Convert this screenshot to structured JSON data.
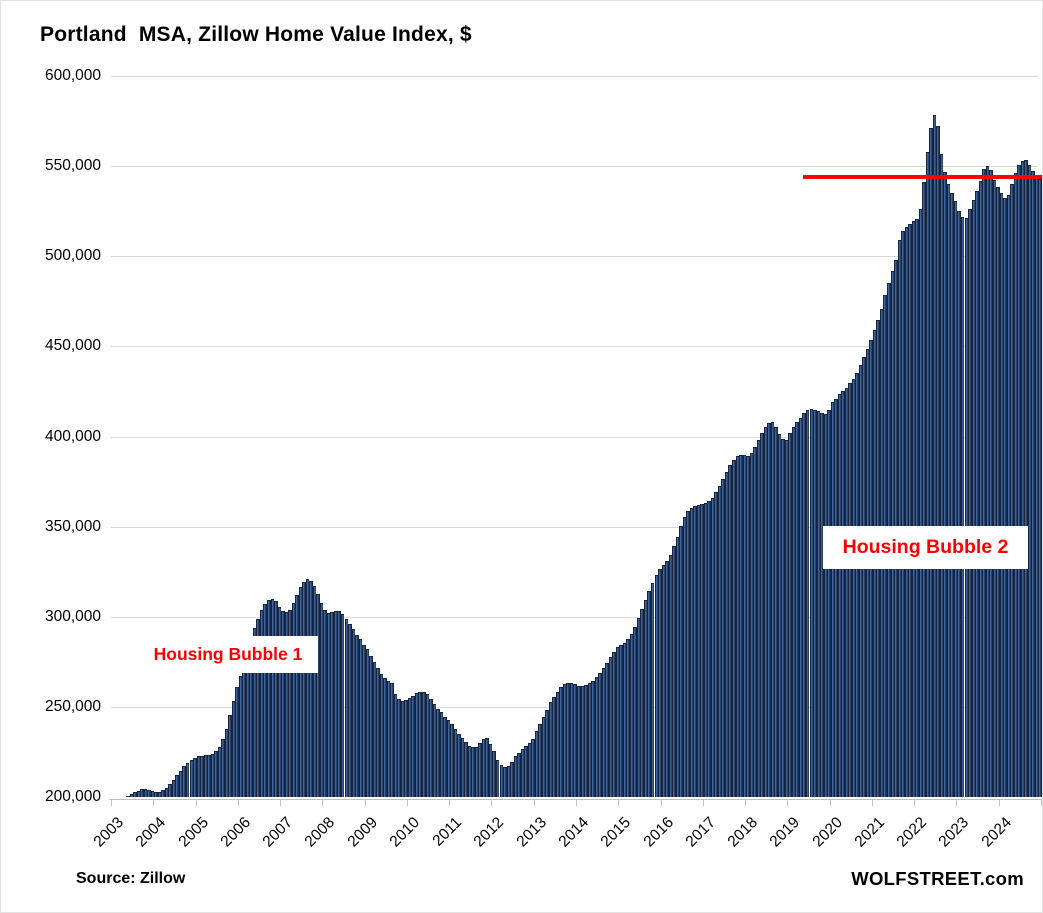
{
  "header": {
    "title": "Portland  MSA, Zillow Home Value Index, $"
  },
  "footer": {
    "source": "Source: Zillow",
    "watermark": "WOLFSTREET.com"
  },
  "annotations": {
    "bubble1": {
      "label": "Housing Bubble 1"
    },
    "bubble2": {
      "label": "Housing Bubble 2"
    }
  },
  "colors": {
    "bar_fill": "#3d639b",
    "bar_outline": "#16243f",
    "gridline": "#d9d9d9",
    "axis": "#bfbfbf",
    "annotation_red": "#fe0000",
    "reference_line_red": "#fe0000"
  },
  "chart_data": {
    "type": "bar",
    "title": "Portland  MSA, Zillow Home Value Index, $",
    "xlabel": "",
    "ylabel": "",
    "ylim": [
      200000,
      600000
    ],
    "grid": "horizontal",
    "y_ticks": [
      {
        "value": 600000,
        "label": "600,000"
      },
      {
        "value": 550000,
        "label": "550,000"
      },
      {
        "value": 500000,
        "label": "500,000"
      },
      {
        "value": 450000,
        "label": "450,000"
      },
      {
        "value": 400000,
        "label": "400,000"
      },
      {
        "value": 350000,
        "label": "350,000"
      },
      {
        "value": 300000,
        "label": "300,000"
      },
      {
        "value": 250000,
        "label": "250,000"
      },
      {
        "value": 200000,
        "label": "200,000"
      }
    ],
    "x_years": [
      "2003",
      "2004",
      "2005",
      "2006",
      "2007",
      "2008",
      "2009",
      "2010",
      "2011",
      "2012",
      "2013",
      "2014",
      "2015",
      "2016",
      "2017",
      "2018",
      "2019",
      "2020",
      "2021",
      "2022",
      "2023",
      "2024"
    ],
    "frequency": "monthly",
    "start": "2003-01",
    "end": "2024-12",
    "reference_line": {
      "value": 544000,
      "start": "2019-06",
      "end": "2024-12"
    },
    "values": [
      198000,
      198500,
      199000,
      199500,
      200500,
      201500,
      202500,
      203500,
      204300,
      204500,
      204000,
      203300,
      202800,
      203000,
      203800,
      205000,
      207000,
      209500,
      212000,
      214500,
      217000,
      219000,
      220500,
      221800,
      222500,
      223000,
      223300,
      223500,
      224000,
      225500,
      228000,
      232000,
      238000,
      245500,
      253500,
      261000,
      267000,
      273500,
      280000,
      287000,
      293500,
      299000,
      303500,
      307000,
      309500,
      310000,
      308500,
      305500,
      303000,
      302500,
      304000,
      307500,
      312000,
      316500,
      319500,
      321000,
      320000,
      317000,
      312500,
      307500,
      303500,
      302000,
      302500,
      303000,
      303000,
      301500,
      299000,
      296000,
      293000,
      290000,
      287500,
      284500,
      282000,
      278500,
      275000,
      271500,
      268500,
      266000,
      264500,
      263500,
      257000,
      254500,
      253500,
      254000,
      255000,
      256000,
      257500,
      258000,
      258000,
      257000,
      254500,
      251500,
      249000,
      247000,
      244500,
      242500,
      240500,
      237500,
      235000,
      232500,
      230500,
      228500,
      227500,
      228000,
      230000,
      232000,
      232500,
      229500,
      225500,
      220500,
      217500,
      216500,
      217000,
      219500,
      222500,
      224500,
      226500,
      228500,
      230000,
      232000,
      236500,
      240500,
      244500,
      248500,
      252500,
      255500,
      258500,
      261000,
      262500,
      263500,
      263500,
      262500,
      261500,
      261500,
      262000,
      263000,
      264500,
      266500,
      269000,
      271500,
      274500,
      277500,
      280500,
      283000,
      284500,
      285500,
      287500,
      290500,
      294500,
      299500,
      304500,
      309500,
      314500,
      319000,
      323000,
      326500,
      328500,
      331000,
      334500,
      339000,
      344500,
      350500,
      355500,
      358500,
      360500,
      361500,
      362000,
      362500,
      363000,
      364000,
      366000,
      369000,
      372500,
      376500,
      380500,
      384000,
      387000,
      389000,
      390000,
      389500,
      389000,
      391000,
      394000,
      398000,
      402000,
      405500,
      407500,
      408000,
      405500,
      401500,
      398500,
      398000,
      402000,
      405000,
      408000,
      410500,
      413000,
      414500,
      415000,
      414500,
      414000,
      413000,
      412500,
      414500,
      419000,
      421000,
      423500,
      425500,
      427000,
      429500,
      432000,
      435500,
      439500,
      444000,
      448500,
      453500,
      459000,
      464500,
      471000,
      478500,
      485000,
      492000,
      498000,
      509000,
      514000,
      516500,
      518000,
      519500,
      520500,
      526000,
      541000,
      558000,
      571000,
      578500,
      572000,
      557000,
      547000,
      540000,
      535000,
      530500,
      525000,
      521500,
      521000,
      526000,
      531000,
      536000,
      542000,
      548500,
      550000,
      548000,
      542500,
      538500,
      535000,
      532500,
      534000,
      540000,
      546000,
      550500,
      553000,
      553500,
      550500,
      547500,
      544500,
      543000
    ]
  }
}
